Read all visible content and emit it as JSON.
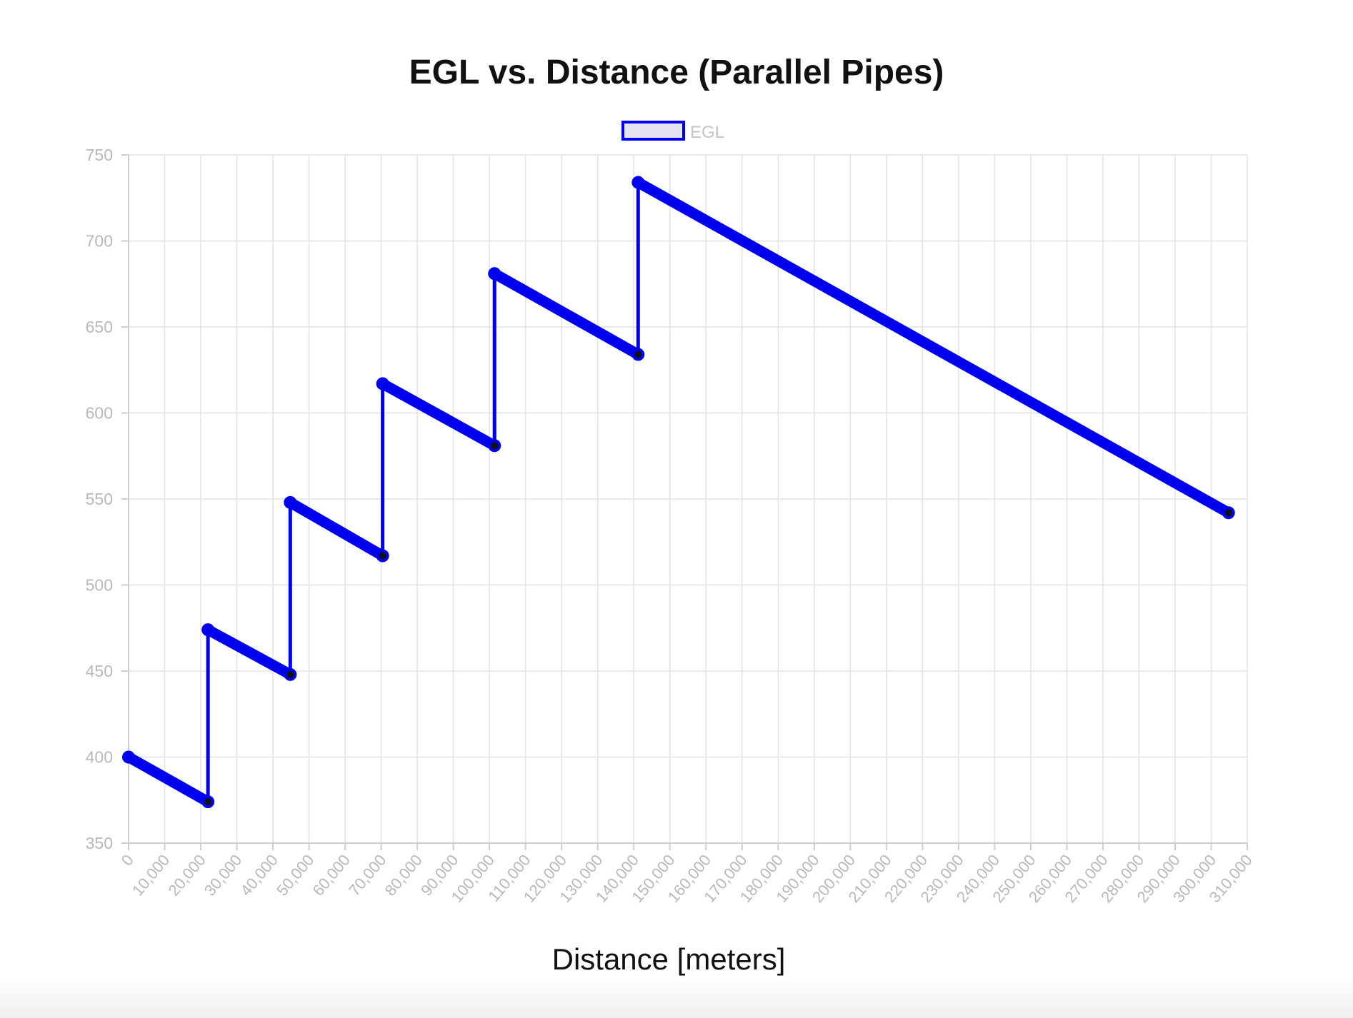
{
  "chart_data": {
    "type": "line",
    "title": "EGL vs. Distance (Parallel Pipes)",
    "xlabel": "Distance [meters]",
    "ylabel": "",
    "xlim": [
      0,
      310000
    ],
    "ylim": [
      350,
      750
    ],
    "y_ticks": [
      "350",
      "400",
      "450",
      "500",
      "550",
      "600",
      "650",
      "700",
      "750"
    ],
    "x_ticks": [
      "0",
      "10,000",
      "20,000",
      "30,000",
      "40,000",
      "50,000",
      "60,000",
      "70,000",
      "80,000",
      "90,000",
      "100,000",
      "110,000",
      "120,000",
      "130,000",
      "140,000",
      "150,000",
      "160,000",
      "170,000",
      "180,000",
      "190,000",
      "200,000",
      "210,000",
      "220,000",
      "230,000",
      "240,000",
      "250,000",
      "260,000",
      "270,000",
      "280,000",
      "290,000",
      "300,000",
      "310,000"
    ],
    "grid": true,
    "legend_position": "top-center",
    "series": [
      {
        "name": "EGL",
        "color": "#0000ee",
        "legend_fill": "#e4e4f2",
        "marker_color": "#111111",
        "x": [
          0,
          22000,
          22000,
          44800,
          44800,
          70400,
          70400,
          101400,
          101400,
          141200,
          141200,
          304800
        ],
        "y": [
          400,
          374,
          474,
          448,
          548,
          517,
          617,
          581,
          681,
          634,
          734,
          542
        ]
      }
    ]
  }
}
